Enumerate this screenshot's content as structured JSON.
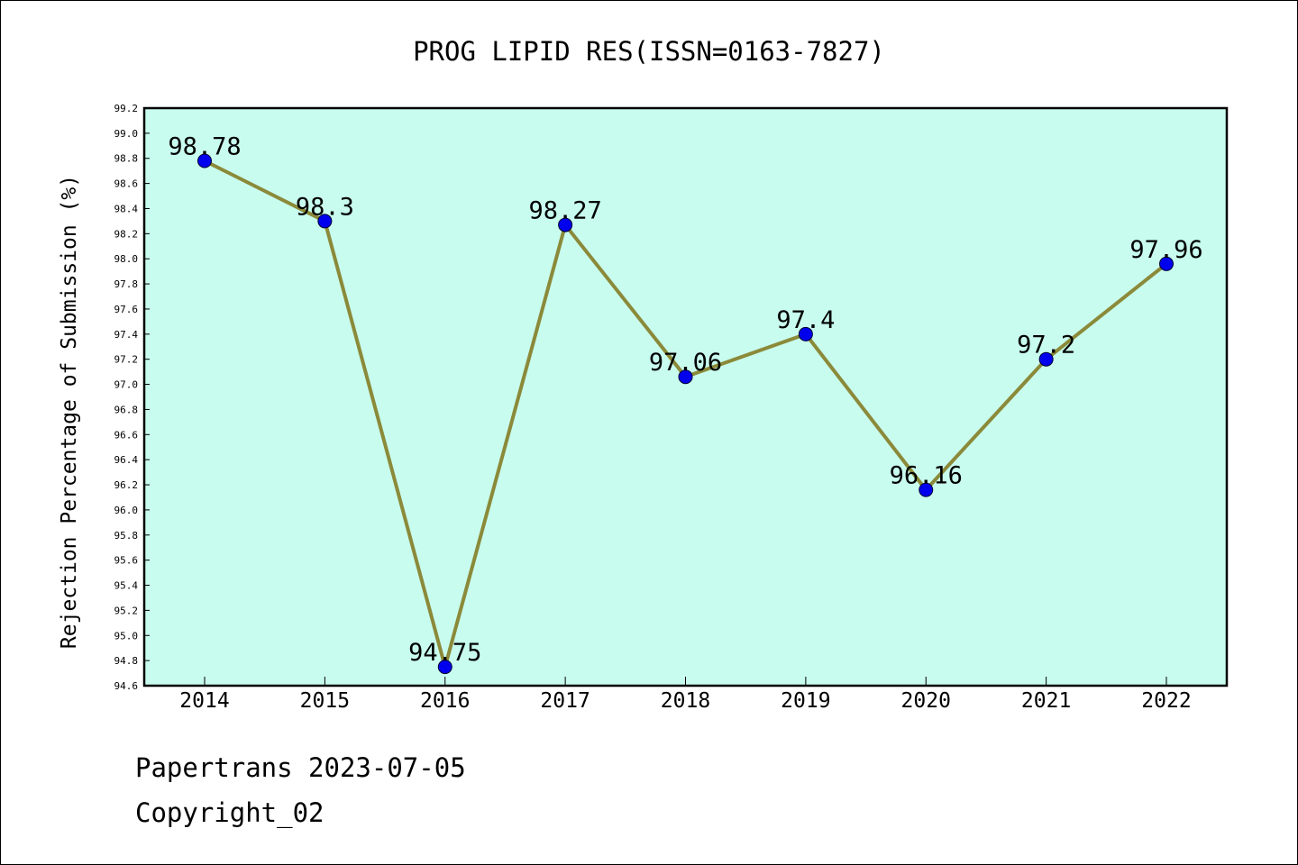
{
  "footer": {
    "line1": "Papertrans 2023-07-05",
    "line2": "Copyright_02"
  },
  "colors": {
    "plot_background": "#c8fcee",
    "line": "#8b8a3a",
    "marker": "#0000ee",
    "axis": "#000000"
  },
  "chart_data": {
    "type": "line",
    "title": "PROG LIPID RES(ISSN=0163-7827)",
    "xlabel": "",
    "ylabel": "Rejection Percentage of Submission (%)",
    "categories": [
      "2014",
      "2015",
      "2016",
      "2017",
      "2018",
      "2019",
      "2020",
      "2021",
      "2022"
    ],
    "series": [
      {
        "values": [
          98.78,
          98.3,
          94.75,
          98.27,
          97.06,
          97.4,
          96.16,
          97.2,
          97.96
        ],
        "data_labels": [
          "98.78",
          "98.3",
          "94.75",
          "98.27",
          "97.06",
          "97.4",
          "96.16",
          "97.2",
          "97.96"
        ]
      }
    ],
    "ylim": [
      94.6,
      99.2
    ],
    "yticks": [
      "94.6",
      "94.8",
      "95.0",
      "95.2",
      "95.4",
      "95.6",
      "95.8",
      "96.0",
      "96.2",
      "96.4",
      "96.6",
      "96.8",
      "97.0",
      "97.2",
      "97.4",
      "97.6",
      "97.8",
      "98.0",
      "98.2",
      "98.4",
      "98.6",
      "98.8",
      "99.0",
      "99.2"
    ],
    "grid": false,
    "legend": "none"
  }
}
